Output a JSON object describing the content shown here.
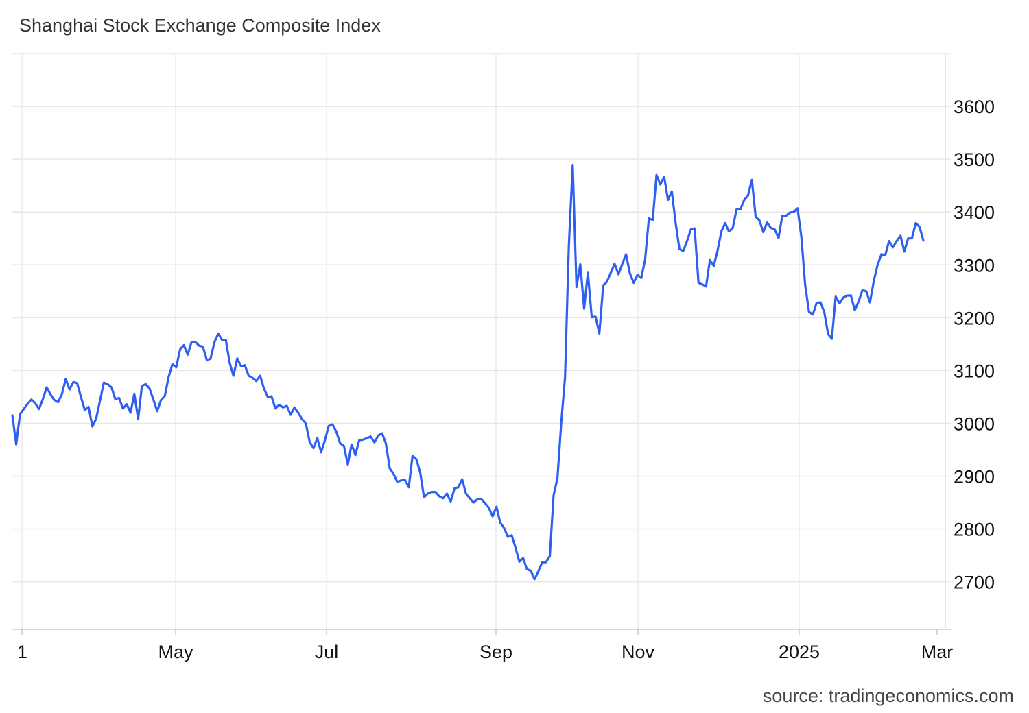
{
  "chart_data": {
    "type": "line",
    "title": "Shanghai Stock Exchange Composite Index",
    "source": "source: tradingeconomics.com",
    "xlabel": "",
    "ylabel": "",
    "x_tick_labels": [
      "1",
      "May",
      "Jul",
      "Sep",
      "Nov",
      "2025",
      "Mar"
    ],
    "y_ticks": [
      2700,
      2800,
      2900,
      3000,
      3100,
      3200,
      3300,
      3400,
      3500,
      3600
    ],
    "ylim": [
      2610,
      3700
    ],
    "y_axis_side": "right",
    "grid": true,
    "color": "#2f5ff0",
    "series": [
      {
        "values": [
          3015,
          2960,
          3017,
          3027,
          3037,
          3045,
          3038,
          3027,
          3046,
          3068,
          3055,
          3044,
          3040,
          3055,
          3084,
          3064,
          3078,
          3076,
          3050,
          3025,
          3031,
          2994,
          3009,
          3043,
          3077,
          3074,
          3068,
          3046,
          3048,
          3028,
          3036,
          3020,
          3056,
          3008,
          3071,
          3074,
          3066,
          3045,
          3023,
          3044,
          3052,
          3088,
          3112,
          3106,
          3140,
          3148,
          3130,
          3154,
          3154,
          3147,
          3145,
          3120,
          3122,
          3153,
          3170,
          3158,
          3158,
          3115,
          3090,
          3123,
          3108,
          3110,
          3090,
          3086,
          3080,
          3090,
          3066,
          3050,
          3051,
          3028,
          3035,
          3030,
          3033,
          3016,
          3030,
          3020,
          3008,
          3000,
          2965,
          2953,
          2972,
          2945,
          2968,
          2995,
          2998,
          2984,
          2962,
          2957,
          2922,
          2960,
          2940,
          2968,
          2969,
          2972,
          2975,
          2964,
          2977,
          2981,
          2962,
          2915,
          2904,
          2889,
          2892,
          2893,
          2879,
          2939,
          2932,
          2907,
          2860,
          2867,
          2870,
          2870,
          2862,
          2858,
          2867,
          2852,
          2877,
          2879,
          2894,
          2867,
          2858,
          2850,
          2856,
          2857,
          2849,
          2840,
          2824,
          2842,
          2812,
          2802,
          2785,
          2788,
          2765,
          2738,
          2745,
          2724,
          2721,
          2705,
          2720,
          2737,
          2737,
          2749,
          2864,
          2896,
          3000,
          3088,
          3336,
          3489,
          3258,
          3301,
          3217,
          3285,
          3201,
          3202,
          3170,
          3261,
          3268,
          3285,
          3302,
          3282,
          3301,
          3320,
          3284,
          3266,
          3281,
          3275,
          3310,
          3388,
          3385,
          3470,
          3452,
          3467,
          3423,
          3439,
          3380,
          3330,
          3326,
          3345,
          3367,
          3369,
          3266,
          3263,
          3259,
          3309,
          3298,
          3326,
          3363,
          3379,
          3363,
          3370,
          3405,
          3405,
          3423,
          3431,
          3461,
          3391,
          3384,
          3362,
          3380,
          3370,
          3367,
          3351,
          3393,
          3393,
          3399,
          3400,
          3407,
          3353,
          3262,
          3211,
          3206,
          3228,
          3229,
          3211,
          3169,
          3160,
          3240,
          3227,
          3238,
          3242,
          3242,
          3214,
          3230,
          3252,
          3250,
          3229,
          3270,
          3300,
          3320,
          3318,
          3345,
          3333,
          3345,
          3355,
          3325,
          3350,
          3350,
          3379,
          3372,
          3346
        ]
      }
    ]
  }
}
